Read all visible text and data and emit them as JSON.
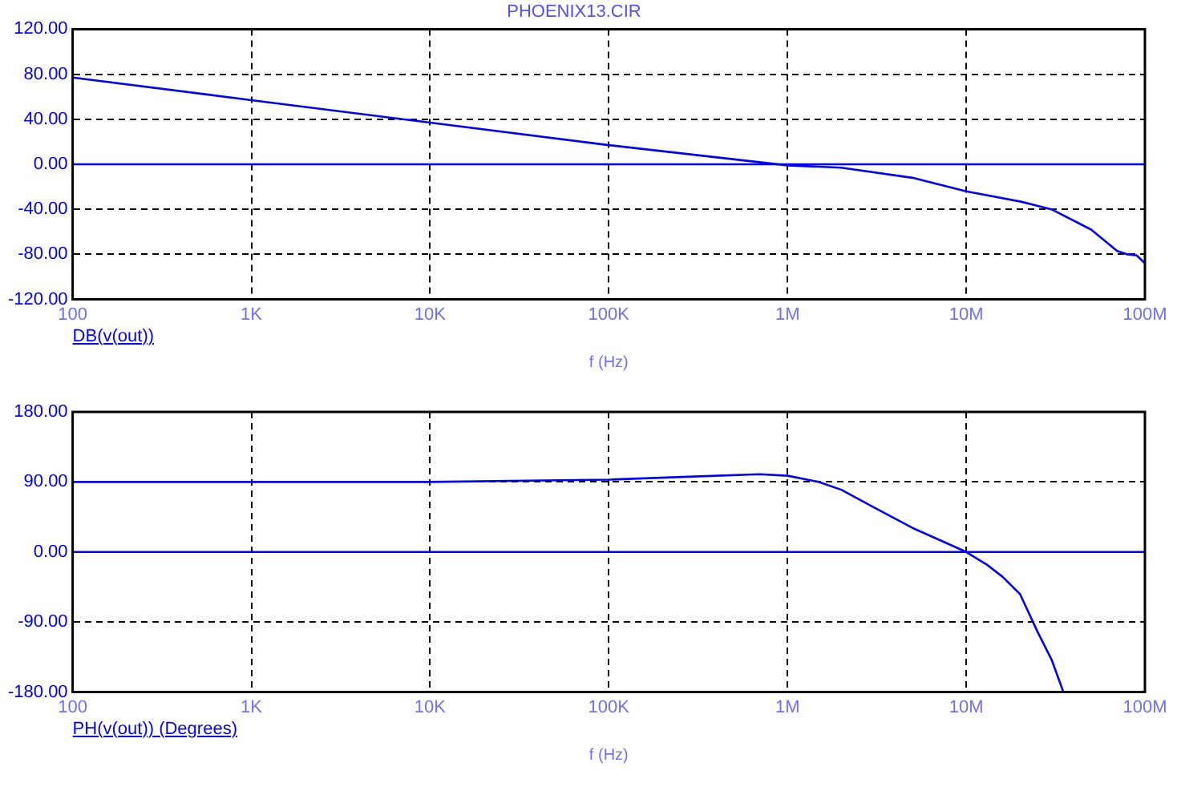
{
  "chart_data": [
    {
      "type": "line",
      "title": "PHOENIX13.CIR",
      "xlabel": "f (Hz)",
      "legend": "bottom left",
      "log": "x",
      "grid": true,
      "marker": "none",
      "x": [
        100,
        1000,
        10000,
        100000,
        1000000,
        2000000,
        5000000,
        10000000,
        20000000,
        30000000,
        50000000,
        70000000,
        80000000,
        90000000,
        100000000
      ],
      "series": [
        {
          "name": "DB(v(out))",
          "color": "#0000ff",
          "values": [
            77,
            57,
            37,
            17,
            -1,
            -3,
            -12,
            -24,
            -33,
            -40,
            -58,
            -77,
            -80,
            -81,
            -88
          ]
        }
      ],
      "xlim": [
        100,
        100000000
      ],
      "xticks": [
        {
          "value": 100,
          "label": "100"
        },
        {
          "value": 1000,
          "label": "1K"
        },
        {
          "value": 10000,
          "label": "10K"
        },
        {
          "value": 100000,
          "label": "100K"
        },
        {
          "value": 1000000,
          "label": "1M"
        },
        {
          "value": 10000000,
          "label": "10M"
        },
        {
          "value": 100000000,
          "label": "100M"
        }
      ],
      "ylim": [
        -120,
        120
      ],
      "yticks": [
        {
          "value": -120,
          "label": "-120.00"
        },
        {
          "value": -80,
          "label": "-80.00"
        },
        {
          "value": -40,
          "label": "-40.00"
        },
        {
          "value": 0,
          "label": "0.00"
        },
        {
          "value": 40,
          "label": "40.00"
        },
        {
          "value": 80,
          "label": "80.00"
        },
        {
          "value": 120,
          "label": "120.00"
        }
      ],
      "ref_lines": [
        {
          "axis": "y",
          "value": 0,
          "color": "#0000ff"
        }
      ]
    },
    {
      "type": "line",
      "xlabel": "f (Hz)",
      "legend": "bottom left",
      "log": "x",
      "grid": true,
      "marker": "none",
      "x": [
        100,
        1000,
        10000,
        100000,
        300000,
        700000,
        1000000,
        1500000,
        2000000,
        3000000,
        5000000,
        7000000,
        10000000,
        13000000,
        16000000,
        20000000,
        25000000,
        30000000,
        35000000
      ],
      "series": [
        {
          "name": "PH(v(out)) (Degrees)",
          "color": "#0000ff",
          "values": [
            90,
            90,
            90,
            93,
            97,
            100,
            98,
            90,
            80,
            58,
            31,
            16,
            0,
            -16,
            -32,
            -54,
            -102,
            -138,
            -180
          ]
        }
      ],
      "xlim": [
        100,
        100000000
      ],
      "xticks": [
        {
          "value": 100,
          "label": "100"
        },
        {
          "value": 1000,
          "label": "1K"
        },
        {
          "value": 10000,
          "label": "10K"
        },
        {
          "value": 100000,
          "label": "100K"
        },
        {
          "value": 1000000,
          "label": "1M"
        },
        {
          "value": 10000000,
          "label": "10M"
        },
        {
          "value": 100000000,
          "label": "100M"
        }
      ],
      "ylim": [
        -180,
        180
      ],
      "yticks": [
        {
          "value": -180,
          "label": "-180.00"
        },
        {
          "value": -90,
          "label": "-90.00"
        },
        {
          "value": 0,
          "label": "0.00"
        },
        {
          "value": 90,
          "label": "90.00"
        },
        {
          "value": 180,
          "label": "180.00"
        }
      ],
      "ref_lines": [
        {
          "axis": "y",
          "value": 0,
          "color": "#0000ff"
        }
      ]
    }
  ]
}
